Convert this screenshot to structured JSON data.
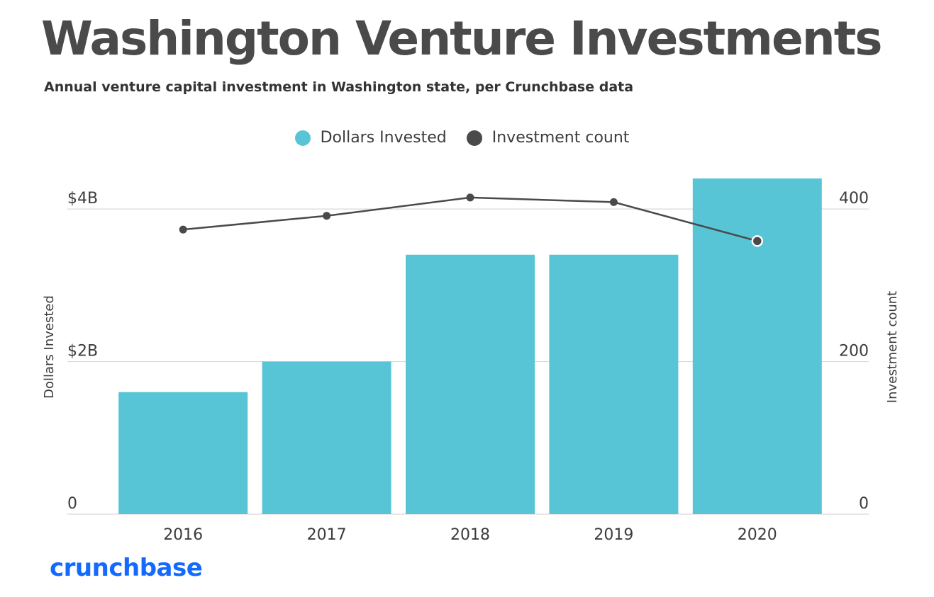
{
  "header": {
    "title": "Washington Venture Investments",
    "subtitle": "Annual venture capital investment in Washington state, per Crunchbase data"
  },
  "legend": {
    "items": [
      {
        "label": "Dollars Invested",
        "color": "#58c5d6"
      },
      {
        "label": "Investment count",
        "color": "#4a4a4a"
      }
    ]
  },
  "brand": {
    "text": "crunchbase",
    "color": "#146aff"
  },
  "chart_data": {
    "type": "bar",
    "title": "Washington Venture Investments",
    "categories": [
      "2016",
      "2017",
      "2018",
      "2019",
      "2020"
    ],
    "series": [
      {
        "name": "Dollars Invested",
        "type": "bar",
        "axis": "left",
        "unit": "$B",
        "values": [
          1.6,
          2.0,
          3.4,
          3.4,
          4.4
        ],
        "color": "#58c5d6"
      },
      {
        "name": "Investment count",
        "type": "line",
        "axis": "right",
        "values": [
          373,
          391,
          415,
          409,
          358
        ],
        "color": "#4a4a4a"
      }
    ],
    "left_axis": {
      "label": "Dollars Invested",
      "range": [
        0,
        4.4
      ],
      "ticks": [
        0,
        2,
        4
      ],
      "tick_labels": [
        "0",
        "$2B",
        "$4B"
      ]
    },
    "right_axis": {
      "label": "Investment count",
      "range": [
        0,
        440
      ],
      "ticks": [
        0,
        200,
        400
      ],
      "tick_labels": [
        "0",
        "200",
        "400"
      ]
    },
    "grid": true,
    "legend_position": "top-center"
  }
}
